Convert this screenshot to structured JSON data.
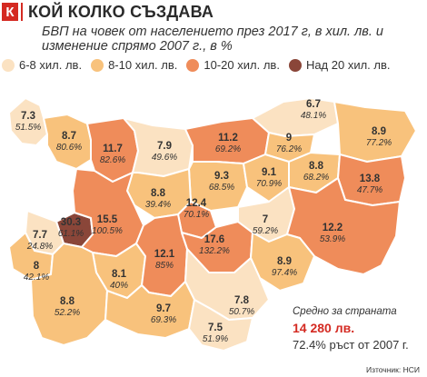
{
  "header": {
    "logo": "К",
    "title": "КОЙ КОЛКО СЪЗДАВА",
    "subtitle": "БВП на човек от населението през 2017 г, в хил. лв. и изменение спрямо 2007 г., в %"
  },
  "legend": [
    {
      "label": "6-8 хил. лв.",
      "color": "#fbe2c2"
    },
    {
      "label": "8-10 хил. лв.",
      "color": "#f8c27c"
    },
    {
      "label": "10-20 хил. лв.",
      "color": "#ef8c5a"
    },
    {
      "label": "Над 20 хил. лв.",
      "color": "#8a4639"
    }
  ],
  "regions": [
    {
      "id": "vidin",
      "value": "7.3",
      "change": "51.5%",
      "color": "#fbe2c2"
    },
    {
      "id": "montana",
      "value": "8.7",
      "change": "80.6%",
      "color": "#f8c27c"
    },
    {
      "id": "vratsa",
      "value": "11.7",
      "change": "82.6%",
      "color": "#ef8c5a"
    },
    {
      "id": "pleven",
      "value": "7.9",
      "change": "49.6%",
      "color": "#fbe2c2"
    },
    {
      "id": "ruse",
      "value": "11.2",
      "change": "69.2%",
      "color": "#ef8c5a"
    },
    {
      "id": "silistra",
      "value": "6.7",
      "change": "48.1%",
      "color": "#fbe2c2"
    },
    {
      "id": "razgrad",
      "value": "9",
      "change": "76.2%",
      "color": "#f8c27c"
    },
    {
      "id": "dobrich",
      "value": "8.9",
      "change": "77.2%",
      "color": "#f8c27c"
    },
    {
      "id": "vtarnovo",
      "value": "9.3",
      "change": "68.5%",
      "color": "#f8c27c"
    },
    {
      "id": "targovishte",
      "value": "9.1",
      "change": "70.9%",
      "color": "#f8c27c"
    },
    {
      "id": "shumen",
      "value": "8.8",
      "change": "68.2%",
      "color": "#f8c27c"
    },
    {
      "id": "varna",
      "value": "13.8",
      "change": "47.7%",
      "color": "#ef8c5a"
    },
    {
      "id": "lovech",
      "value": "8.8",
      "change": "39.4%",
      "color": "#f8c27c"
    },
    {
      "id": "gabrovo",
      "value": "12.4",
      "change": "70.1%",
      "color": "#ef8c5a"
    },
    {
      "id": "sofia-city",
      "value": "30.3",
      "change": "61.1%",
      "color": "#8a4639"
    },
    {
      "id": "sofia-region",
      "value": "15.5",
      "change": "100.5%",
      "color": "#ef8c5a"
    },
    {
      "id": "pernik",
      "value": "7.7",
      "change": "24.8%",
      "color": "#fbe2c2"
    },
    {
      "id": "kyustendil",
      "value": "8",
      "change": "42.1%",
      "color": "#f8c27c"
    },
    {
      "id": "pazardzhik",
      "value": "8.1",
      "change": "40%",
      "color": "#f8c27c"
    },
    {
      "id": "plovdiv",
      "value": "12.1",
      "change": "85%",
      "color": "#ef8c5a"
    },
    {
      "id": "stara-zagora",
      "value": "17.6",
      "change": "132.2%",
      "color": "#ef8c5a"
    },
    {
      "id": "sliven",
      "value": "7",
      "change": "59.2%",
      "color": "#fbe2c2"
    },
    {
      "id": "burgas",
      "value": "12.2",
      "change": "53.9%",
      "color": "#ef8c5a"
    },
    {
      "id": "yambol",
      "value": "8.9",
      "change": "97.4%",
      "color": "#f8c27c"
    },
    {
      "id": "haskovo",
      "value": "7.8",
      "change": "50.7%",
      "color": "#fbe2c2"
    },
    {
      "id": "blagoevgrad",
      "value": "8.8",
      "change": "52.2%",
      "color": "#f8c27c"
    },
    {
      "id": "smolyan",
      "value": "9.7",
      "change": "69.3%",
      "color": "#f8c27c"
    },
    {
      "id": "kardzhali",
      "value": "7.5",
      "change": "51.9%",
      "color": "#fbe2c2"
    }
  ],
  "average": {
    "label": "Средно за страната",
    "value": "14 280 лв.",
    "growth": "72.4% ръст от 2007 г."
  },
  "source": "Източник: НСИ"
}
